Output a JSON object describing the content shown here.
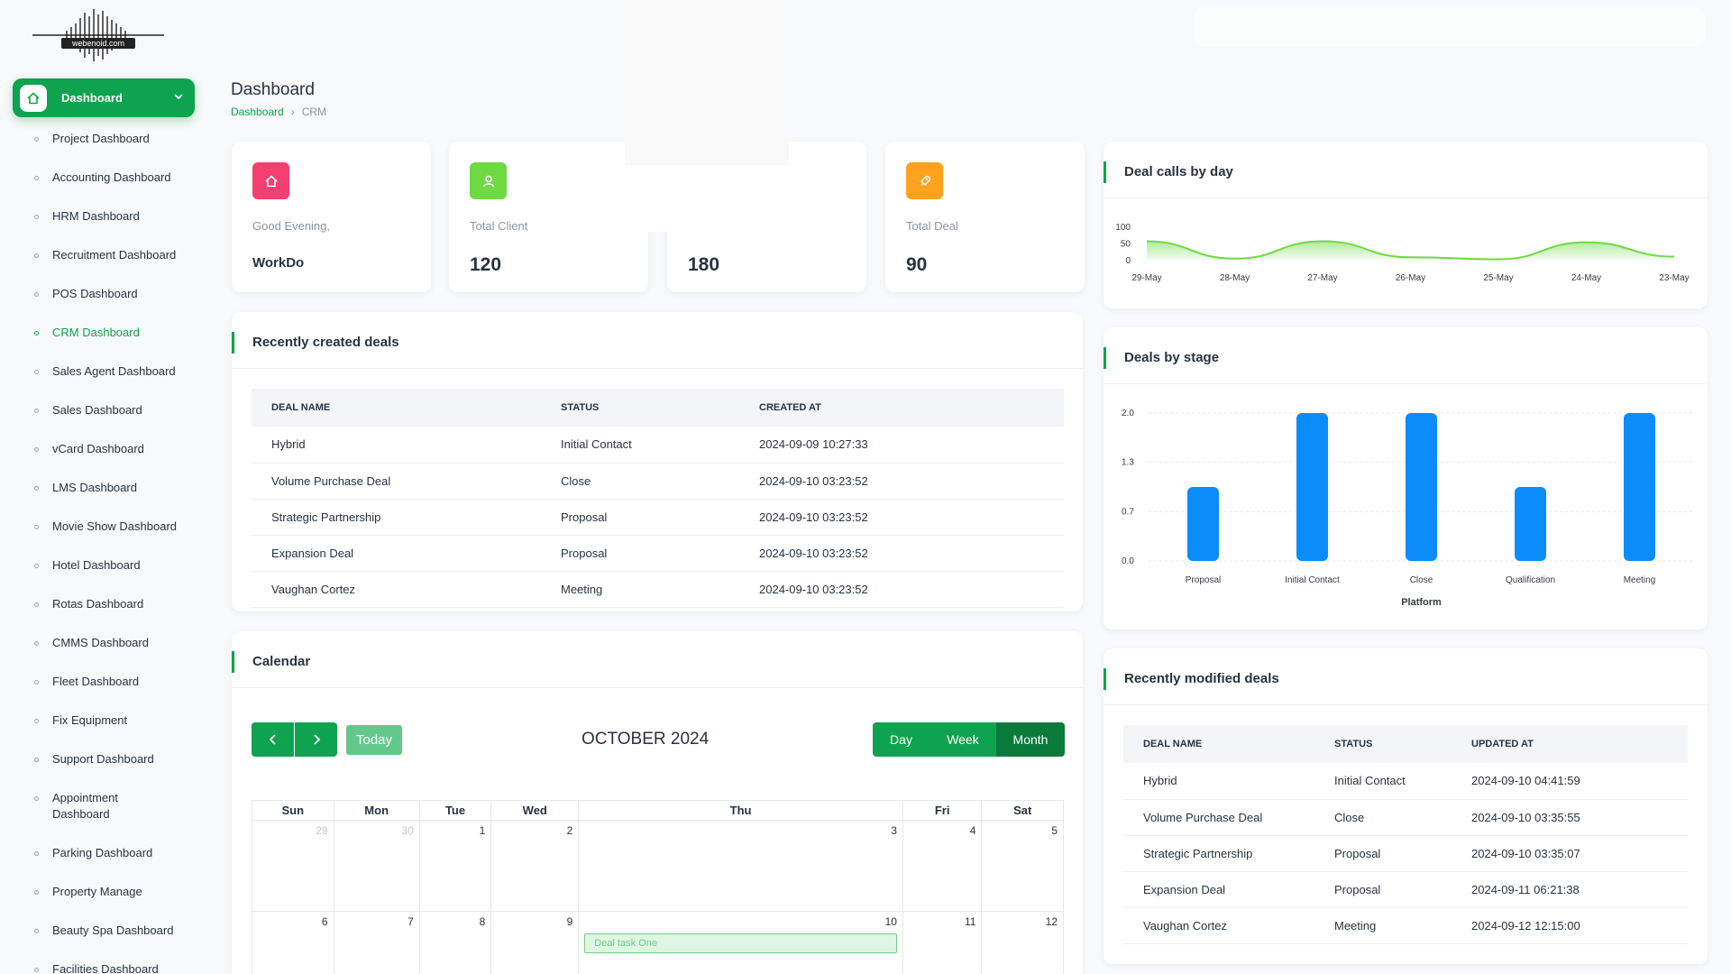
{
  "logo": {
    "text": "webenoid.com"
  },
  "sidebar": {
    "active": {
      "label": "Dashboard"
    },
    "items": [
      {
        "label": "Project Dashboard"
      },
      {
        "label": "Accounting Dashboard"
      },
      {
        "label": "HRM Dashboard"
      },
      {
        "label": "Recruitment Dashboard"
      },
      {
        "label": "POS Dashboard"
      },
      {
        "label": "CRM Dashboard"
      },
      {
        "label": "Sales Agent Dashboard"
      },
      {
        "label": "Sales Dashboard"
      },
      {
        "label": "vCard Dashboard"
      },
      {
        "label": "LMS Dashboard"
      },
      {
        "label": "Movie Show Dashboard"
      },
      {
        "label": "Hotel Dashboard"
      },
      {
        "label": "Rotas Dashboard"
      },
      {
        "label": "CMMS Dashboard"
      },
      {
        "label": "Fleet Dashboard"
      },
      {
        "label": "Fix Equipment"
      },
      {
        "label": "Support Dashboard"
      },
      {
        "label": "Appointment Dashboard"
      },
      {
        "label": "Parking Dashboard"
      },
      {
        "label": "Property Manage"
      },
      {
        "label": "Beauty Spa Dashboard"
      },
      {
        "label": "Facilities Dashboard"
      }
    ]
  },
  "header": {
    "title": "Dashboard",
    "breadcrumb": {
      "home": "Dashboard",
      "separator": "›",
      "current": "CRM"
    }
  },
  "stats": [
    {
      "label": "Good Evening,",
      "value": "WorkDo",
      "color": "#f43f70",
      "icon": "home-icon"
    },
    {
      "label": "Total Client",
      "value": "120",
      "color": "#6fd943",
      "icon": "user-icon"
    },
    {
      "label": "",
      "value": "180",
      "color": "#ffffff",
      "icon": ""
    },
    {
      "label": "Total Deal",
      "value": "90",
      "color": "#ffa21d",
      "icon": "rocket-icon"
    }
  ],
  "recent_deals": {
    "title": "Recently created deals",
    "columns": [
      "DEAL NAME",
      "STATUS",
      "CREATED AT"
    ],
    "rows": [
      [
        "Hybrid",
        "Initial Contact",
        "2024-09-09 10:27:33"
      ],
      [
        "Volume Purchase Deal",
        "Close",
        "2024-09-10 03:23:52"
      ],
      [
        "Strategic Partnership",
        "Proposal",
        "2024-09-10 03:23:52"
      ],
      [
        "Expansion Deal",
        "Proposal",
        "2024-09-10 03:23:52"
      ],
      [
        "Vaughan Cortez",
        "Meeting",
        "2024-09-10 03:23:52"
      ]
    ]
  },
  "calendar": {
    "title": "Calendar",
    "today": "Today",
    "month_label": "OCTOBER 2024",
    "views": [
      "Day",
      "Week",
      "Month"
    ],
    "active_view": "Month",
    "weekdays": [
      "Sun",
      "Mon",
      "Tue",
      "Wed",
      "Thu",
      "Fri",
      "Sat"
    ],
    "weeks": [
      [
        "29",
        "30",
        "1",
        "2",
        "3",
        "4",
        "5"
      ],
      [
        "6",
        "7",
        "8",
        "9",
        "10",
        "11",
        "12"
      ]
    ],
    "event": {
      "day": "10",
      "label": "Deal task One"
    }
  },
  "charts": {
    "deal_calls": {
      "title": "Deal calls by day"
    },
    "deals_stage": {
      "title": "Deals by stage"
    }
  },
  "chart_data": [
    {
      "type": "area",
      "title": "Deal calls by day",
      "x": [
        "29-May",
        "28-May",
        "27-May",
        "26-May",
        "25-May",
        "24-May",
        "23-May"
      ],
      "series": [
        {
          "values": [
            58,
            6,
            58,
            10,
            4,
            55,
            12
          ]
        }
      ],
      "ylim": [
        0,
        100
      ],
      "yticks": [
        "100",
        "50",
        "0"
      ],
      "color": "#6fd943"
    },
    {
      "type": "bar",
      "title": "Deals by stage",
      "categories": [
        "Proposal",
        "Initial Contact",
        "Close",
        "Qualification",
        "Meeting"
      ],
      "values": [
        1,
        2,
        2,
        1,
        2
      ],
      "xlabel": "Platform",
      "ylabel": "",
      "ylim": [
        0,
        2
      ],
      "yticks": [
        "2.0",
        "1.3",
        "0.7",
        "0.0"
      ],
      "color": "#0a8cfa"
    }
  ],
  "recent_modified": {
    "title": "Recently modified deals",
    "columns": [
      "DEAL NAME",
      "STATUS",
      "UPDATED AT"
    ],
    "rows": [
      [
        "Hybrid",
        "Initial Contact",
        "2024-09-10 04:41:59"
      ],
      [
        "Volume Purchase Deal",
        "Close",
        "2024-09-10 03:35:55"
      ],
      [
        "Strategic Partnership",
        "Proposal",
        "2024-09-10 03:35:07"
      ],
      [
        "Expansion Deal",
        "Proposal",
        "2024-09-11 06:21:38"
      ],
      [
        "Vaughan Cortez",
        "Meeting",
        "2024-09-12 12:15:00"
      ]
    ]
  }
}
